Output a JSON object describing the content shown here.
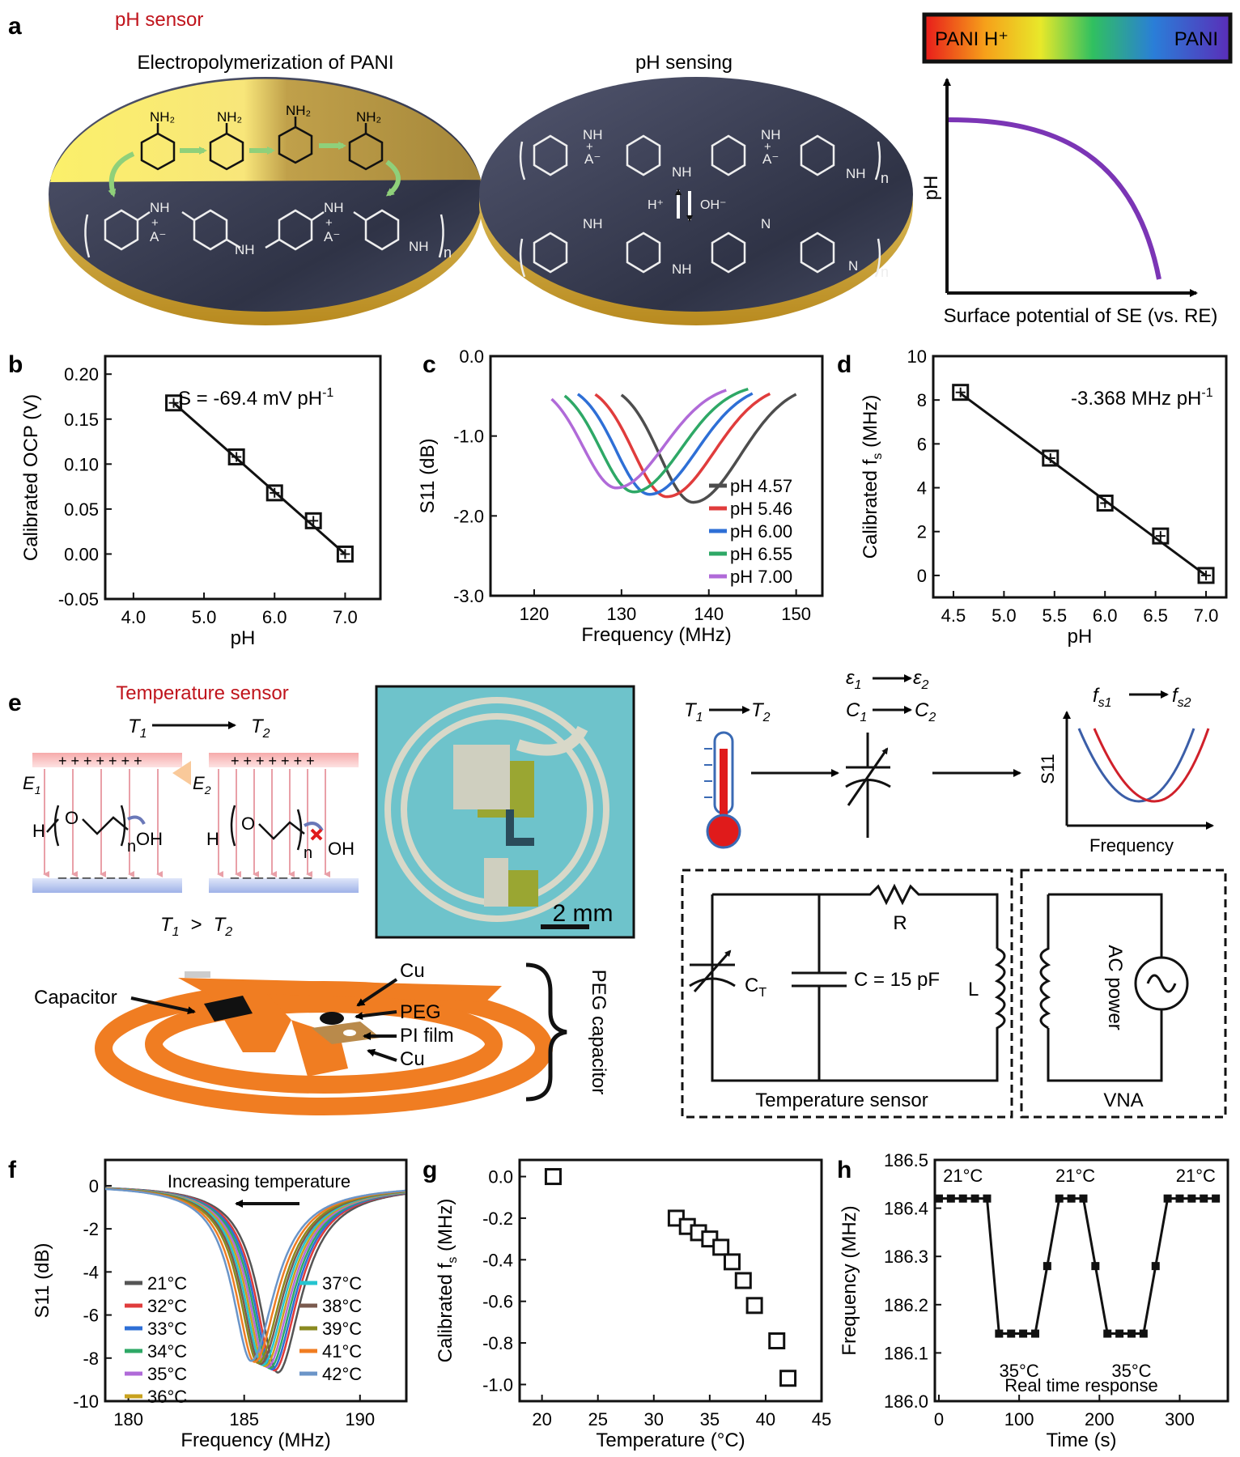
{
  "panel_a": {
    "letter": "a",
    "section_label": "pH sensor",
    "left_title": "Electropolymerization of PANI",
    "middle_title": "pH sensing",
    "colorbar_left": "PANI H⁺",
    "colorbar_right": "PANI",
    "ylabel": "pH",
    "xlabel": "Surface potential of SE (vs. RE)",
    "nh2": "NH₂",
    "nh": "NH",
    "a_minus": "A⁻",
    "plus": "+",
    "n": "n",
    "n_ring": "N",
    "h_plus": "H⁺",
    "oh_minus": "OH⁻"
  },
  "panel_e": {
    "letter": "e",
    "section_label": "Temperature sensor",
    "t1": "T",
    "t2": "T",
    "sub1": "1",
    "sub2": "2",
    "e1": "E",
    "e2": "E",
    "charges_plus": "+ + + + + + +",
    "charges_minus": "_ _ _ _ _ _ _",
    "h": "H",
    "o": "O",
    "oh": "OH",
    "n": "n",
    "gt": ">",
    "scale_bar": "2 mm",
    "capacitor": "Capacitor",
    "cu_top": "Cu",
    "peg": "PEG",
    "pi_film": "PI film",
    "cu_bottom": "Cu",
    "peg_capacitor": "PEG capacitor",
    "eps1": "ε",
    "eps2": "ε",
    "c1": "C",
    "c2": "C",
    "fs1": "f",
    "fs2": "f",
    "fs_sub1": "s1",
    "fs_sub2": "s2",
    "s11": "S11",
    "frequency": "Frequency",
    "r": "R",
    "ct": "C",
    "ct_sub": "T",
    "c_value": "C = 15 pF",
    "l": "L",
    "ac_power": "AC power",
    "temp_sensor_label": "Temperature sensor",
    "vna": "VNA"
  },
  "colors": {
    "red_label": "#c0141c",
    "orange_coil": "#f07d22",
    "grey_disc": "#3a3f55",
    "gold_rim": "#caa035",
    "purple_curve": "#7b35b5"
  },
  "chart_data": [
    {
      "id": "b",
      "letter": "b",
      "type": "scatter",
      "xlabel": "pH",
      "ylabel": "Calibrated OCP (V)",
      "xlim": [
        3.6,
        7.5
      ],
      "ylim": [
        -0.05,
        0.22
      ],
      "xticks": [
        "4.0",
        "5.0",
        "6.0",
        "7.0"
      ],
      "yticks": [
        "-0.05",
        "0.00",
        "0.05",
        "0.10",
        "0.15",
        "0.20"
      ],
      "x": [
        4.57,
        5.46,
        6.0,
        6.55,
        7.0
      ],
      "y": [
        0.168,
        0.108,
        0.068,
        0.037,
        0.0
      ],
      "fit": {
        "x": [
          4.57,
          7.0
        ],
        "y": [
          0.168,
          0.0
        ]
      },
      "annotation": "S = -69.4 mV pH",
      "annotation_sup": "-1"
    },
    {
      "id": "c",
      "letter": "c",
      "type": "line",
      "xlabel": "Frequency (MHz)",
      "ylabel": "S11 (dB)",
      "xlim": [
        115,
        153
      ],
      "ylim": [
        -3.0,
        0.0
      ],
      "xticks": [
        "120",
        "130",
        "140",
        "150"
      ],
      "yticks": [
        "0.0",
        "-1.0",
        "-2.0",
        "-3.0"
      ],
      "series": [
        {
          "name": "pH 4.57",
          "color": "#4d4d4d",
          "center": 138.2,
          "min": -1.83,
          "start": 130,
          "end": 150
        },
        {
          "name": "pH 5.46",
          "color": "#e03c3c",
          "center": 135.2,
          "min": -1.76,
          "start": 127,
          "end": 147
        },
        {
          "name": "pH 6.00",
          "color": "#2e6fd6",
          "center": 133.2,
          "min": -1.73,
          "start": 125,
          "end": 145
        },
        {
          "name": "pH 6.55",
          "color": "#2ea866",
          "center": 131.4,
          "min": -1.7,
          "start": 123.5,
          "end": 144.5
        },
        {
          "name": "pH 7.00",
          "color": "#b06ad8",
          "center": 129.4,
          "min": -1.65,
          "start": 122,
          "end": 142
        }
      ]
    },
    {
      "id": "d",
      "letter": "d",
      "type": "scatter",
      "xlabel": "pH",
      "ylabel": "Calibrated f",
      "ylabel_sub": "s",
      "ylabel_unit": " (MHz)",
      "xlim": [
        4.3,
        7.2
      ],
      "ylim": [
        -1.0,
        10.0
      ],
      "xticks": [
        "4.5",
        "5.0",
        "5.5",
        "6.0",
        "6.5",
        "7.0"
      ],
      "yticks": [
        "0",
        "2",
        "4",
        "6",
        "8",
        "10"
      ],
      "x": [
        4.57,
        5.46,
        6.0,
        6.55,
        7.0
      ],
      "y": [
        8.35,
        5.35,
        3.3,
        1.8,
        0.0
      ],
      "fit": {
        "x": [
          4.57,
          7.0
        ],
        "y": [
          8.3,
          0.0
        ]
      },
      "annotation": "-3.368 MHz pH",
      "annotation_sup": "-1"
    },
    {
      "id": "f",
      "letter": "f",
      "type": "line",
      "xlabel": "Frequency (MHz)",
      "ylabel": "S11 (dB)",
      "xlim": [
        179,
        192
      ],
      "ylim": [
        -10,
        1.2
      ],
      "xticks": [
        "180",
        "185",
        "190"
      ],
      "yticks": [
        "0",
        "-2",
        "-4",
        "-6",
        "-8",
        "-10"
      ],
      "annotation": "Increasing temperature",
      "series": [
        {
          "name": "21°C",
          "color": "#555555",
          "center": 186.45,
          "min": -8.9
        },
        {
          "name": "32°C",
          "color": "#e03c3c",
          "center": 186.3,
          "min": -8.8
        },
        {
          "name": "33°C",
          "color": "#2e6fd6",
          "center": 186.2,
          "min": -8.75
        },
        {
          "name": "34°C",
          "color": "#2ea866",
          "center": 186.1,
          "min": -8.7
        },
        {
          "name": "35°C",
          "color": "#b06ad8",
          "center": 186.0,
          "min": -8.65
        },
        {
          "name": "36°C",
          "color": "#c8a21e",
          "center": 185.9,
          "min": -8.6
        },
        {
          "name": "37°C",
          "color": "#25c4cf",
          "center": 185.8,
          "min": -8.55
        },
        {
          "name": "38°C",
          "color": "#7a5a4e",
          "center": 185.7,
          "min": -8.5
        },
        {
          "name": "39°C",
          "color": "#8a8a20",
          "center": 185.6,
          "min": -8.45
        },
        {
          "name": "41°C",
          "color": "#f07d22",
          "center": 185.45,
          "min": -8.4
        },
        {
          "name": "42°C",
          "color": "#6b95c8",
          "center": 185.3,
          "min": -8.35
        }
      ]
    },
    {
      "id": "g",
      "letter": "g",
      "type": "scatter",
      "xlabel": "Temperature (°C)",
      "ylabel": "Calibrated f",
      "ylabel_sub": "s",
      "ylabel_unit": " (MHz)",
      "xlim": [
        18,
        45
      ],
      "ylim": [
        -1.08,
        0.08
      ],
      "xticks": [
        "20",
        "25",
        "30",
        "35",
        "40",
        "45"
      ],
      "yticks": [
        "0.0",
        "-0.2",
        "-0.4",
        "-0.6",
        "-0.8",
        "-1.0"
      ],
      "x": [
        21,
        32,
        33,
        34,
        35,
        36,
        37,
        38,
        39,
        41,
        42
      ],
      "y": [
        0.0,
        -0.2,
        -0.24,
        -0.27,
        -0.3,
        -0.34,
        -0.41,
        -0.5,
        -0.62,
        -0.79,
        -0.97
      ]
    },
    {
      "id": "h",
      "letter": "h",
      "type": "line",
      "xlabel": "Time (s)",
      "ylabel": "Frequency (MHz)",
      "xlim": [
        -5,
        360
      ],
      "ylim": [
        186.0,
        186.5
      ],
      "xticks": [
        "0",
        "100",
        "200",
        "300"
      ],
      "yticks": [
        "186.5",
        "186.4",
        "186.3",
        "186.2",
        "186.1",
        "186.0"
      ],
      "x": [
        0,
        15,
        30,
        45,
        60,
        75,
        90,
        105,
        120,
        135,
        150,
        165,
        180,
        195,
        210,
        225,
        240,
        255,
        270,
        285,
        300,
        315,
        330,
        345
      ],
      "y": [
        186.42,
        186.42,
        186.42,
        186.42,
        186.42,
        186.14,
        186.14,
        186.14,
        186.14,
        186.28,
        186.42,
        186.42,
        186.42,
        186.28,
        186.14,
        186.14,
        186.14,
        186.14,
        186.28,
        186.42,
        186.42,
        186.42,
        186.42,
        186.42
      ],
      "annotations": [
        "21°C",
        "35°C",
        "21°C",
        "35°C",
        "21°C"
      ],
      "caption": "Real time response"
    }
  ]
}
